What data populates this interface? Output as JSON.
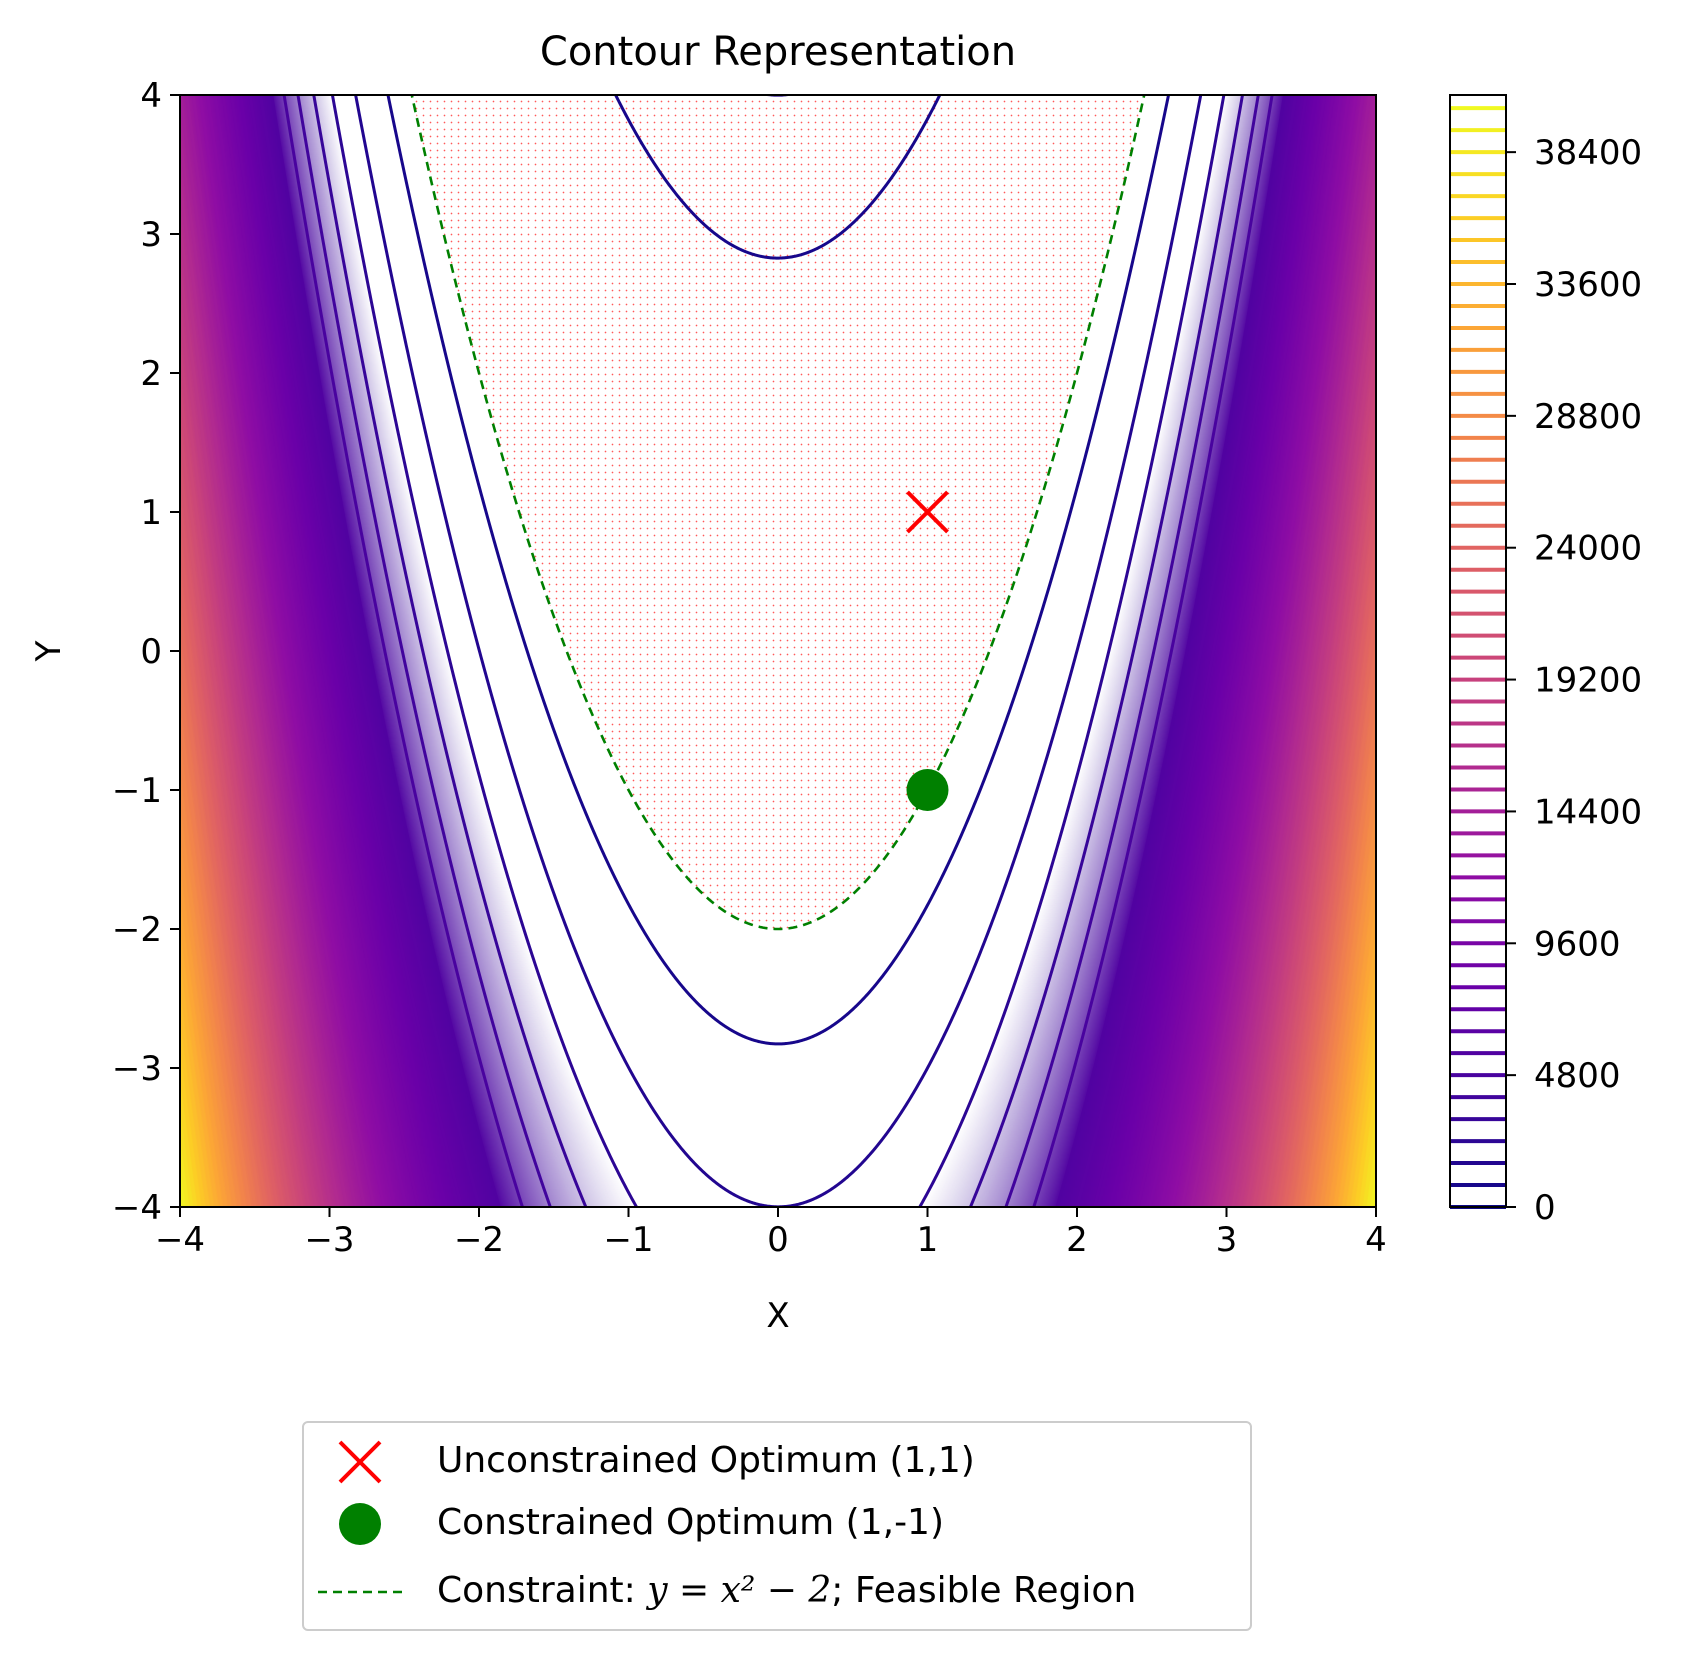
{
  "chart_data": {
    "type": "contour",
    "title": "Contour Representation",
    "xlabel": "X",
    "ylabel": "Y",
    "xlim": [
      -4,
      4
    ],
    "ylim": [
      -4,
      4
    ],
    "x_ticks": [
      -4,
      -3,
      -2,
      -1,
      0,
      1,
      2,
      3,
      4
    ],
    "y_ticks": [
      -4,
      -3,
      -2,
      -1,
      0,
      1,
      2,
      3,
      4
    ],
    "x_tick_labels": [
      "−4",
      "−3",
      "−2",
      "−1",
      "0",
      "1",
      "2",
      "3",
      "4"
    ],
    "y_tick_labels": [
      "−4",
      "−3",
      "−2",
      "−1",
      "0",
      "1",
      "2",
      "3",
      "4"
    ],
    "function": "100*(y - x^2)^2 + (1 - x)^2",
    "contour_levels": {
      "min": 0,
      "max": 40000,
      "step": 800
    },
    "colormap": "plasma",
    "colorbar": {
      "ticks": [
        0,
        4800,
        9600,
        14400,
        19200,
        24000,
        28800,
        33600,
        38400
      ],
      "tick_labels": [
        "0",
        "4800",
        "9600",
        "14400",
        "19200",
        "24000",
        "28800",
        "33600",
        "38400"
      ]
    },
    "feasible_region": {
      "condition": "y >= x^2 - 2",
      "hatch": "dots",
      "color": "#ff4d4d"
    },
    "series": [
      {
        "name": "Unconstrained Optimum (1,1)",
        "kind": "point",
        "marker": "x",
        "x": 1,
        "y": 1,
        "color": "#ff0000"
      },
      {
        "name": "Constrained Optimum (1,-1)",
        "kind": "point",
        "marker": "circle",
        "x": 1,
        "y": -1,
        "color": "#008000"
      },
      {
        "name": "Constraint: y = x² − 2; Feasible Region",
        "kind": "line",
        "style": "dashed",
        "expr": "x^2 - 2",
        "color": "#008000"
      }
    ],
    "legend": {
      "placement": "bottom-center, below plot",
      "entries": [
        {
          "label": "Unconstrained Optimum (1,1)"
        },
        {
          "label_prefix": "Constraint: ",
          "label_math": "y = x² − 2",
          "label_suffix": "; Feasible Region"
        }
      ]
    }
  }
}
